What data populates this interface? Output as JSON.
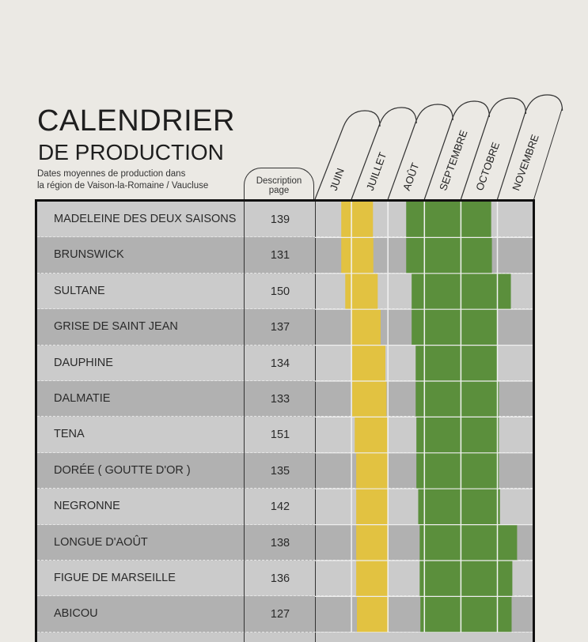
{
  "header": {
    "title_line1": "CALENDRIER",
    "title_line2": "DE PRODUCTION",
    "subtitle_line1": "Dates moyennes de production dans",
    "subtitle_line2": "la région de Vaison-la-Romaine / Vaucluse",
    "description_col_line1": "Description",
    "description_col_line2": "page"
  },
  "colors": {
    "early_crop": "#e2c241",
    "main_crop": "#5b8f3c",
    "row_light": "#cbcbcb",
    "row_dark": "#b1b1b1"
  },
  "chart_data": {
    "type": "gantt",
    "months": [
      "JUIN",
      "JUILLET",
      "AOÛT",
      "SEPTEMBRE",
      "OCTOBRE",
      "NOVEMBRE"
    ],
    "unit": "months from 1 June (0 = start of JUIN, 6 = end of NOVEMBRE)",
    "rows": [
      {
        "name": "MADELEINE DES DEUX SAISONS",
        "page": "139",
        "yellow": [
          0.72,
          1.59
        ],
        "green": [
          2.5,
          4.83
        ]
      },
      {
        "name": "BRUNSWICK",
        "page": "131",
        "yellow": [
          0.72,
          1.6
        ],
        "green": [
          2.5,
          4.85
        ]
      },
      {
        "name": "SULTANE",
        "page": "150",
        "yellow": [
          0.83,
          1.72
        ],
        "green": [
          2.65,
          5.37
        ]
      },
      {
        "name": "GRISE DE SAINT JEAN",
        "page": "137",
        "yellow": [
          0.98,
          1.8
        ],
        "green": [
          2.65,
          5.0
        ]
      },
      {
        "name": "DAUPHINE",
        "page": "134",
        "yellow": [
          1.02,
          1.93
        ],
        "green": [
          2.76,
          5.0
        ]
      },
      {
        "name": "DALMATIE",
        "page": "133",
        "yellow": [
          1.02,
          1.96
        ],
        "green": [
          2.76,
          5.04
        ]
      },
      {
        "name": "TENA",
        "page": "151",
        "yellow": [
          1.09,
          1.98
        ],
        "green": [
          2.78,
          5.04
        ]
      },
      {
        "name": "DORÉE ( GOUTTE D'OR )",
        "page": "135",
        "yellow": [
          1.13,
          2.0
        ],
        "green": [
          2.78,
          5.04
        ]
      },
      {
        "name": "NEGRONNE",
        "page": "142",
        "yellow": [
          1.13,
          2.0
        ],
        "green": [
          2.83,
          5.07
        ]
      },
      {
        "name": "LONGUE D'AOÛT",
        "page": "138",
        "yellow": [
          1.13,
          2.0
        ],
        "green": [
          2.87,
          5.54
        ]
      },
      {
        "name": "FIGUE DE MARSEILLE",
        "page": "136",
        "yellow": [
          1.13,
          2.0
        ],
        "green": [
          2.87,
          5.41
        ]
      },
      {
        "name": "ABICOU",
        "page": "127",
        "yellow": [
          1.15,
          2.02
        ],
        "green": [
          2.89,
          5.39
        ]
      }
    ]
  }
}
